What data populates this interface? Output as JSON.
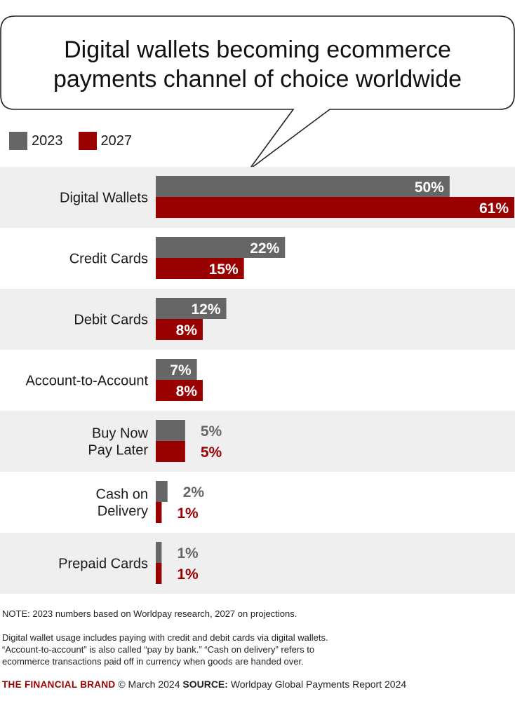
{
  "title_line1": "Digital wallets becoming ecommerce",
  "title_line2": "payments channel of choice worldwide",
  "colors": {
    "y2023": "#666666",
    "y2027": "#990000",
    "band": "#efefef"
  },
  "chart_data": {
    "type": "bar",
    "orientation": "horizontal",
    "categories": [
      [
        "Digital Wallets"
      ],
      [
        "Credit Cards"
      ],
      [
        "Debit Cards"
      ],
      [
        "Account-to-Account"
      ],
      [
        "Buy Now",
        "Pay Later"
      ],
      [
        "Cash on",
        "Delivery"
      ],
      [
        "Prepaid Cards"
      ]
    ],
    "series": [
      {
        "name": "2023",
        "values": [
          50,
          22,
          12,
          7,
          5,
          2,
          1
        ],
        "labels": [
          "50%",
          "22%",
          "12%",
          "7%",
          "5%",
          "2%",
          "1%"
        ]
      },
      {
        "name": "2027",
        "values": [
          61,
          15,
          8,
          8,
          5,
          1,
          1
        ],
        "labels": [
          "61%",
          "15%",
          "8%",
          "8%",
          "5%",
          "1%",
          "1%"
        ]
      }
    ],
    "xlim": [
      0,
      61
    ],
    "legend_position": "top-left",
    "grid": false
  },
  "notes": {
    "note": "NOTE: 2023 numbers based on Worldpay research, 2027 on projections.",
    "desc_line1": "Digital wallet usage includes paying with credit and debit cards via digital wallets.",
    "desc_line2": "“Account-to-account” is also called “pay by bank.” “Cash on delivery” refers to",
    "desc_line3": "ecommerce transactions paid off in currency when goods are handed over."
  },
  "footer": {
    "brand": "THE FINANCIAL BRAND",
    "date": "© March 2024",
    "source_label": "SOURCE:",
    "source_text": "Worldpay Global Payments Report 2024"
  }
}
